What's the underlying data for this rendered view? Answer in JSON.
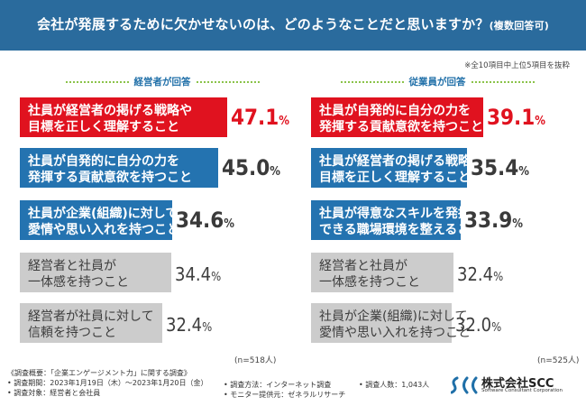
{
  "header": {
    "title": "会社が発展するために欠かせないのは、どのようなことだと思いますか？",
    "title_suffix": "(複数回答可)"
  },
  "note": "※全10項目中上位5項目を抜粋",
  "colors": {
    "header": "#2a6b9d",
    "top": "#e0121f",
    "blue": "#2473b0",
    "gray": "#cccccc",
    "accent": "#8bc34a"
  },
  "chart_data": [
    {
      "type": "bar",
      "title": "経営者が回答",
      "n_label": "(n=518人)",
      "categories": [
        [
          "社員が経営者の掲げる戦略や",
          "目標を正しく理解すること"
        ],
        [
          "社員が自発的に自分の力を",
          "発揮する貢献意欲を持つこと"
        ],
        [
          "社員が企業(組織)に対して",
          "愛情や思い入れを持つこと"
        ],
        [
          "経営者と社員が",
          "一体感を持つこと"
        ],
        [
          "経営者が社員に対して",
          "信頼を持つこと"
        ]
      ],
      "values": [
        47.1,
        45.0,
        34.6,
        34.4,
        32.4
      ],
      "value_labels": [
        "47.1",
        "45.0",
        "34.6",
        "34.4",
        "32.4"
      ],
      "unit": "%",
      "styles": [
        "red",
        "blue",
        "blue",
        "gray",
        "gray"
      ]
    },
    {
      "type": "bar",
      "title": "従業員が回答",
      "n_label": "(n=525人)",
      "categories": [
        [
          "社員が自発的に自分の力を",
          "発揮する貢献意欲を持つこと"
        ],
        [
          "社員が経営者の掲げる戦略や",
          "目標を正しく理解すること"
        ],
        [
          "社員が得意なスキルを発揮",
          "できる職場環境を整えること"
        ],
        [
          "経営者と社員が",
          "一体感を持つこと"
        ],
        [
          "社員が企業(組織)に対して",
          "愛情や思い入れを持つこと"
        ]
      ],
      "values": [
        39.1,
        35.4,
        33.9,
        32.4,
        32.0
      ],
      "value_labels": [
        "39.1",
        "35.4",
        "33.9",
        "32.4",
        "32.0"
      ],
      "unit": "%",
      "styles": [
        "red",
        "blue",
        "blue",
        "gray",
        "gray"
      ]
    }
  ],
  "footer": {
    "survey_title": "《調査概要：「企業エンゲージメント力」に関する調査》",
    "period": "• 調査期間：2023年1月19日（木）〜2023年1月20日（金）",
    "target": "• 調査対象：経営者と会社員",
    "method": "• 調査方法：インターネット調査",
    "provider": "• モニター提供元：ゼネラルリサーチ",
    "count": "• 調査人数：1,043人"
  },
  "logo": {
    "name": "株式会社SCC",
    "sub": "Software Consultant Corporation"
  }
}
